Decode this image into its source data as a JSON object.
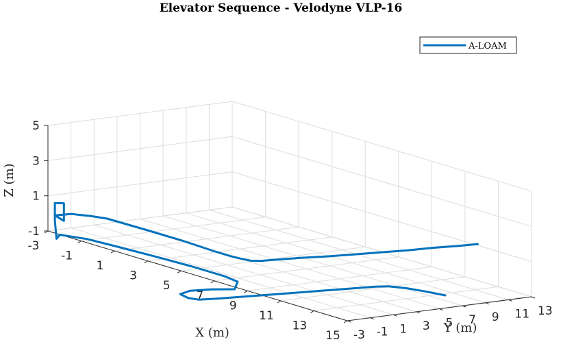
{
  "chart_data": {
    "type": "line",
    "title": "Elevator Sequence - Velodyne VLP-16",
    "xlabel": "X (m)",
    "ylabel": "Y (m)",
    "zlabel": "Z (m)",
    "xticks": [
      "-3",
      "-1",
      "1",
      "3",
      "5",
      "7",
      "9",
      "11",
      "13",
      "15"
    ],
    "yticks": [
      "-3",
      "-1",
      "1",
      "3",
      "5",
      "7",
      "9",
      "11",
      "13"
    ],
    "zticks": [
      "-1",
      "1",
      "3",
      "5"
    ],
    "grid": true,
    "legend_position": "top-right",
    "series": [
      {
        "name": "A-LOAM",
        "color": "#0072BD",
        "points": [
          {
            "x": 15.7,
            "y": 4.5,
            "z": 0.0
          },
          {
            "x": 14.8,
            "y": 4.1,
            "z": 0.0
          },
          {
            "x": 14.0,
            "y": 3.6,
            "z": 0.0
          },
          {
            "x": 13.4,
            "y": 2.9,
            "z": 0.0
          },
          {
            "x": 13.2,
            "y": 2.0,
            "z": 0.0
          },
          {
            "x": 13.0,
            "y": 0.0,
            "z": 0.0
          },
          {
            "x": 12.8,
            "y": -2.0,
            "z": 0.0
          },
          {
            "x": 12.6,
            "y": -4.0,
            "z": 0.0
          },
          {
            "x": 12.4,
            "y": -6.0,
            "z": 0.0
          },
          {
            "x": 12.2,
            "y": -8.0,
            "z": 0.0
          },
          {
            "x": 12.0,
            "y": -10.0,
            "z": 0.0
          },
          {
            "x": 11.8,
            "y": -11.3,
            "z": 0.0
          },
          {
            "x": 11.4,
            "y": -11.6,
            "z": 0.0
          },
          {
            "x": 10.7,
            "y": -11.3,
            "z": 0.0
          },
          {
            "x": 10.4,
            "y": -10.0,
            "z": 0.0
          },
          {
            "x": 10.6,
            "y": -8.5,
            "z": 0.0
          },
          {
            "x": 11.0,
            "y": -7.0,
            "z": 0.0
          },
          {
            "x": 10.0,
            "y": -5.3,
            "z": 0.0
          },
          {
            "x": 9.0,
            "y": -5.0,
            "z": 0.0
          },
          {
            "x": 7.0,
            "y": -5.0,
            "z": 0.0
          },
          {
            "x": 5.0,
            "y": -5.2,
            "z": 0.0
          },
          {
            "x": 3.0,
            "y": -5.5,
            "z": 0.0
          },
          {
            "x": 1.3,
            "y": -5.8,
            "z": 0.0
          },
          {
            "x": 0.2,
            "y": -6.6,
            "z": 0.0
          },
          {
            "x": 0.7,
            "y": -7.6,
            "z": 0.0
          },
          {
            "x": 0.6,
            "y": -7.6,
            "z": 1.0
          },
          {
            "x": 0.6,
            "y": -7.6,
            "z": 2.0
          },
          {
            "x": 0.8,
            "y": -7.1,
            "z": 2.0
          },
          {
            "x": 0.8,
            "y": -7.1,
            "z": 1.0
          },
          {
            "x": 0.6,
            "y": -7.6,
            "z": 1.3
          },
          {
            "x": 0.9,
            "y": -7.3,
            "z": 1.4
          },
          {
            "x": 1.2,
            "y": -7.0,
            "z": 1.5
          },
          {
            "x": 1.4,
            "y": -6.8,
            "z": 1.5
          },
          {
            "x": 1.8,
            "y": -6.3,
            "z": 1.5
          },
          {
            "x": 2.5,
            "y": -5.8,
            "z": 1.5
          },
          {
            "x": 5.0,
            "y": -5.7,
            "z": 1.5
          },
          {
            "x": 7.0,
            "y": -5.7,
            "z": 1.5
          },
          {
            "x": 9.0,
            "y": -5.9,
            "z": 1.5
          },
          {
            "x": 10.0,
            "y": -5.9,
            "z": 1.5
          },
          {
            "x": 10.5,
            "y": -5.8,
            "z": 1.5
          },
          {
            "x": 11.0,
            "y": -5.6,
            "z": 1.5
          },
          {
            "x": 11.2,
            "y": -5.0,
            "z": 1.5
          },
          {
            "x": 11.3,
            "y": -4.0,
            "z": 1.5
          },
          {
            "x": 11.5,
            "y": -2.0,
            "z": 1.5
          },
          {
            "x": 11.8,
            "y": 0.0,
            "z": 1.5
          },
          {
            "x": 12.0,
            "y": 2.0,
            "z": 1.5
          },
          {
            "x": 12.2,
            "y": 4.0,
            "z": 1.5
          },
          {
            "x": 12.4,
            "y": 6.0,
            "z": 1.5
          },
          {
            "x": 12.5,
            "y": 8.0,
            "z": 1.5
          },
          {
            "x": 12.7,
            "y": 10.0,
            "z": 1.5
          },
          {
            "x": 12.8,
            "y": 11.5,
            "z": 1.5
          }
        ]
      }
    ]
  }
}
